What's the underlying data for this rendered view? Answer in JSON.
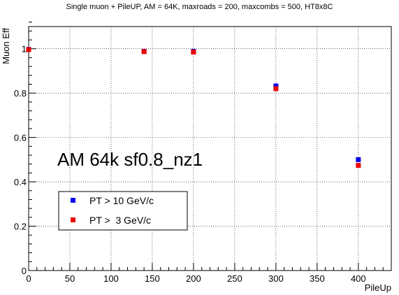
{
  "chart_data": {
    "type": "scatter",
    "title": "Single muon + PileUP, AM = 64K, maxroads = 200, maxcombs = 500, HT8x8C",
    "xlabel": "PileUp",
    "ylabel": "Muon Eff",
    "xlim": [
      0,
      440
    ],
    "ylim": [
      0,
      1.1
    ],
    "xticks": [
      0,
      50,
      100,
      150,
      200,
      250,
      300,
      350,
      400
    ],
    "yticks": [
      0,
      0.2,
      0.4,
      0.6,
      0.8,
      1
    ],
    "xtick_labels": [
      "0",
      "50",
      "100",
      "150",
      "200",
      "250",
      "300",
      "350",
      "400"
    ],
    "ytick_labels": [
      "0",
      "0.2",
      "0.4",
      "0.6",
      "0.8",
      "1"
    ],
    "grid": true,
    "annotation": "AM 64k sf0.8_nz1",
    "legend_position": "bottom-left",
    "series": [
      {
        "name": "PT > 10 GeV/c",
        "color": "#0000ee",
        "points": [
          {
            "x": 0,
            "y": 0.997
          },
          {
            "x": 140,
            "y": 0.988
          },
          {
            "x": 200,
            "y": 0.988
          },
          {
            "x": 300,
            "y": 0.832
          },
          {
            "x": 400,
            "y": 0.5
          }
        ]
      },
      {
        "name": "PT >  3 GeV/c",
        "color": "#ee0000",
        "points": [
          {
            "x": 0,
            "y": 0.996
          },
          {
            "x": 140,
            "y": 0.987
          },
          {
            "x": 200,
            "y": 0.985
          },
          {
            "x": 300,
            "y": 0.82
          },
          {
            "x": 400,
            "y": 0.474
          }
        ]
      }
    ]
  }
}
